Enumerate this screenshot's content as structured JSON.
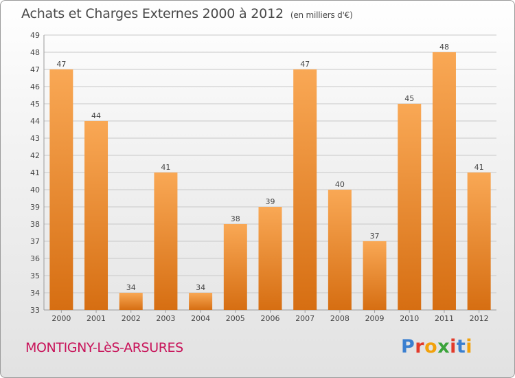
{
  "header": {
    "title": "Achats et Charges Externes 2000 à 2012",
    "subtitle": "(en milliers d'€)"
  },
  "footer": {
    "commune": "MONTIGNY-LèS-ARSURES",
    "logo": {
      "letters": [
        "P",
        "r",
        "o",
        "x",
        "i",
        "t",
        "i"
      ],
      "colors": [
        "#3a7fd0",
        "#e23a2a",
        "#f2a10b",
        "#3aa33a",
        "#e23a2a",
        "#3a7fd0",
        "#f2a10b"
      ]
    }
  },
  "colors": {
    "bar_light": "#f9a855",
    "bar_dark": "#d66e12",
    "grid": "#c8c8c8",
    "axis_text": "#444444"
  },
  "chart_data": {
    "type": "bar",
    "title": "Achats et Charges Externes 2000 à 2012",
    "subtitle": "(en milliers d'€)",
    "categories": [
      "2000",
      "2001",
      "2002",
      "2003",
      "2004",
      "2005",
      "2006",
      "2007",
      "2008",
      "2009",
      "2010",
      "2011",
      "2012"
    ],
    "values": [
      47,
      44,
      34,
      41,
      34,
      38,
      39,
      47,
      40,
      37,
      45,
      48,
      41
    ],
    "ylim": [
      33,
      49
    ],
    "yticks": [
      33,
      34,
      35,
      36,
      37,
      38,
      39,
      40,
      41,
      42,
      43,
      44,
      45,
      46,
      47,
      48,
      49
    ],
    "grid": true,
    "data_labels": true
  }
}
